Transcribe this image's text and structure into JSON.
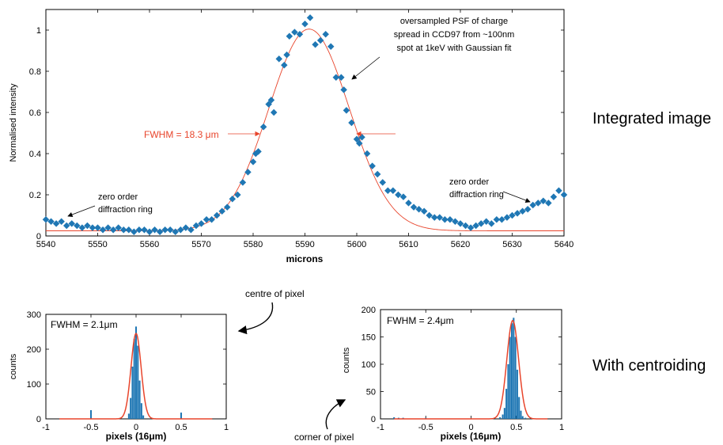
{
  "chart_data": [
    {
      "type": "scatter",
      "xlabel": "microns",
      "ylabel": "Normalised intensity",
      "xlim": [
        5540,
        5640
      ],
      "ylim": [
        0,
        1.1
      ],
      "x_ticks": [
        "5540",
        "5550",
        "5560",
        "5570",
        "5580",
        "5590",
        "5600",
        "5610",
        "5620",
        "5630",
        "5640"
      ],
      "y_ticks": [
        "0",
        "0.2",
        "0.4",
        "0.6",
        "0.8",
        "1"
      ],
      "series": [
        {
          "kind": "points",
          "color": "#1f77b4",
          "x": [
            5540,
            5541,
            5542,
            5543,
            5544,
            5545,
            5546,
            5547,
            5548,
            5549,
            5550,
            5551,
            5552,
            5553,
            5554,
            5555,
            5556,
            5557,
            5558,
            5559,
            5560,
            5561,
            5562,
            5563,
            5564,
            5565,
            5566,
            5567,
            5568,
            5569,
            5570,
            5571,
            5572,
            5573,
            5574,
            5575,
            5576,
            5577,
            5578,
            5579,
            5580,
            5580.5,
            5581,
            5582,
            5583,
            5583.5,
            5584,
            5585,
            5586,
            5586.5,
            5587,
            5588,
            5589,
            5590,
            5591,
            5592,
            5593,
            5594,
            5595,
            5596,
            5597,
            5597.5,
            5598,
            5599,
            5600,
            5600.5,
            5601,
            5602,
            5603,
            5604,
            5605,
            5606,
            5607,
            5608,
            5609,
            5610,
            5611,
            5612,
            5613,
            5614,
            5615,
            5616,
            5617,
            5618,
            5619,
            5620,
            5621,
            5622,
            5623,
            5624,
            5625,
            5626,
            5627,
            5628,
            5629,
            5630,
            5631,
            5632,
            5633,
            5634,
            5635,
            5636,
            5637,
            5638,
            5639,
            5640
          ],
          "y": [
            0.08,
            0.07,
            0.06,
            0.07,
            0.05,
            0.06,
            0.05,
            0.04,
            0.05,
            0.04,
            0.04,
            0.03,
            0.04,
            0.03,
            0.04,
            0.03,
            0.03,
            0.02,
            0.03,
            0.03,
            0.02,
            0.03,
            0.02,
            0.03,
            0.03,
            0.02,
            0.03,
            0.04,
            0.03,
            0.05,
            0.06,
            0.08,
            0.08,
            0.1,
            0.12,
            0.14,
            0.18,
            0.2,
            0.26,
            0.31,
            0.36,
            0.4,
            0.41,
            0.53,
            0.64,
            0.66,
            0.6,
            0.86,
            0.83,
            0.88,
            0.97,
            0.99,
            0.98,
            1.03,
            1.06,
            0.93,
            0.95,
            0.98,
            0.92,
            0.77,
            0.77,
            0.71,
            0.61,
            0.55,
            0.47,
            0.45,
            0.48,
            0.4,
            0.34,
            0.3,
            0.26,
            0.22,
            0.22,
            0.2,
            0.19,
            0.16,
            0.14,
            0.13,
            0.12,
            0.1,
            0.09,
            0.09,
            0.08,
            0.08,
            0.07,
            0.06,
            0.05,
            0.04,
            0.05,
            0.06,
            0.07,
            0.06,
            0.08,
            0.08,
            0.09,
            0.1,
            0.11,
            0.12,
            0.13,
            0.15,
            0.16,
            0.17,
            0.16,
            0.19,
            0.22,
            0.2
          ]
        },
        {
          "kind": "gaussian-fit",
          "color": "#e8452c",
          "center": 5590.8,
          "sigma": 7.77,
          "amplitude": 0.98,
          "offset": 0.025
        }
      ],
      "annotations": {
        "fwhm": "FWHM = 18.3 μm",
        "psf": [
          "oversampled PSF of charge",
          "spread in CCD97 from ~100nm",
          "spot at 1keV with Gaussian fit"
        ],
        "ring_left": [
          "zero order",
          "diffraction ring"
        ],
        "ring_right": [
          "zero order",
          "diffraction ring"
        ]
      }
    },
    {
      "type": "bar",
      "xlabel": "pixels (16μm)",
      "ylabel": "counts",
      "xlim": [
        -1,
        1
      ],
      "ylim": [
        0,
        300
      ],
      "x_ticks": [
        "-1",
        "-0.5",
        "0",
        "0.5",
        "1"
      ],
      "y_ticks": [
        "0",
        "100",
        "200",
        "300"
      ],
      "bar_color": "#1f77b4",
      "fit_color": "#e8452c",
      "fwhm": "FWHM = 2.1μm",
      "bars": {
        "x": [
          -0.5,
          -0.08,
          -0.06,
          -0.04,
          -0.02,
          0.0,
          0.02,
          0.04,
          0.06,
          0.08,
          0.5
        ],
        "values": [
          25,
          15,
          60,
          150,
          230,
          265,
          210,
          110,
          45,
          10,
          18
        ]
      },
      "fit": {
        "center": 0.0,
        "sigma": 0.056,
        "amplitude": 245
      }
    },
    {
      "type": "bar",
      "xlabel": "pixels (16μm)",
      "ylabel": "counts",
      "xlim": [
        -1,
        1
      ],
      "ylim": [
        0,
        200
      ],
      "x_ticks": [
        "-1",
        "-0.5",
        "0",
        "0.5",
        "1"
      ],
      "y_ticks": [
        "0",
        "50",
        "100",
        "150",
        "200"
      ],
      "bar_color": "#1f77b4",
      "fit_color": "#e8452c",
      "fwhm": "FWHM = 2.4μm",
      "bars": {
        "x": [
          -0.85,
          -0.8,
          -0.75,
          -0.5,
          0.32,
          0.35,
          0.37,
          0.39,
          0.41,
          0.43,
          0.45,
          0.47,
          0.49,
          0.51,
          0.53,
          0.55,
          0.57,
          0.6
        ],
        "values": [
          3,
          2,
          2,
          2,
          3,
          8,
          20,
          55,
          100,
          150,
          175,
          185,
          150,
          90,
          40,
          15,
          5,
          2
        ]
      },
      "fit": {
        "center": 0.46,
        "sigma": 0.065,
        "amplitude": 180
      }
    }
  ],
  "labels": {
    "integrated": "Integrated image",
    "centroiding": "With centroiding",
    "centre": "centre of pixel",
    "corner": "corner of pixel"
  }
}
